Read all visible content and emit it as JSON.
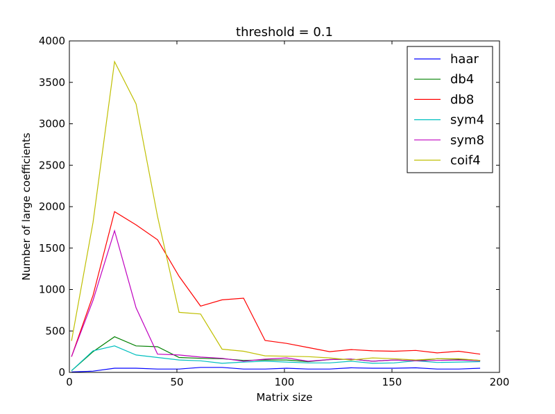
{
  "chart_data": {
    "type": "line",
    "title": "threshold = 0.1",
    "xlabel": "Matrix size",
    "ylabel": "Number of large coefficients",
    "xlim": [
      0,
      200
    ],
    "ylim": [
      0,
      4000
    ],
    "xticks": [
      0,
      50,
      100,
      150,
      200
    ],
    "xtick_labels": [
      "0",
      "50",
      "100",
      "150",
      "200"
    ],
    "yticks": [
      0,
      500,
      1000,
      1500,
      2000,
      2500,
      3000,
      3500,
      4000
    ],
    "ytick_labels": [
      "0",
      "500",
      "1000",
      "1500",
      "2000",
      "2500",
      "3000",
      "3500",
      "4000"
    ],
    "grid": false,
    "legend_position": "top-right",
    "x": [
      1,
      11,
      21,
      31,
      41,
      51,
      61,
      71,
      81,
      91,
      101,
      111,
      121,
      131,
      141,
      151,
      161,
      171,
      181,
      191
    ],
    "series": [
      {
        "name": "haar",
        "color": "#0000ff",
        "values": [
          5,
          15,
          50,
          50,
          40,
          40,
          60,
          60,
          40,
          40,
          50,
          40,
          40,
          55,
          50,
          50,
          55,
          40,
          40,
          50
        ]
      },
      {
        "name": "db4",
        "color": "#008000",
        "values": [
          20,
          250,
          430,
          320,
          310,
          180,
          170,
          165,
          145,
          150,
          150,
          130,
          155,
          160,
          135,
          150,
          140,
          165,
          160,
          145
        ]
      },
      {
        "name": "db8",
        "color": "#ff0000",
        "values": [
          190,
          930,
          1940,
          1780,
          1600,
          1160,
          800,
          875,
          895,
          385,
          350,
          300,
          250,
          275,
          260,
          255,
          265,
          235,
          255,
          220
        ]
      },
      {
        "name": "sym4",
        "color": "#00bfbf",
        "values": [
          20,
          260,
          320,
          210,
          180,
          150,
          140,
          110,
          125,
          135,
          125,
          115,
          115,
          135,
          110,
          115,
          140,
          120,
          125,
          130
        ]
      },
      {
        "name": "sym8",
        "color": "#bf00bf",
        "values": [
          190,
          870,
          1710,
          780,
          220,
          210,
          185,
          170,
          135,
          160,
          175,
          135,
          155,
          160,
          135,
          150,
          140,
          145,
          150,
          140
        ]
      },
      {
        "name": "coif4",
        "color": "#bfbf00",
        "values": [
          380,
          1810,
          3750,
          3240,
          1880,
          725,
          705,
          280,
          255,
          200,
          195,
          190,
          175,
          150,
          175,
          165,
          150,
          165,
          165,
          145
        ]
      }
    ]
  }
}
